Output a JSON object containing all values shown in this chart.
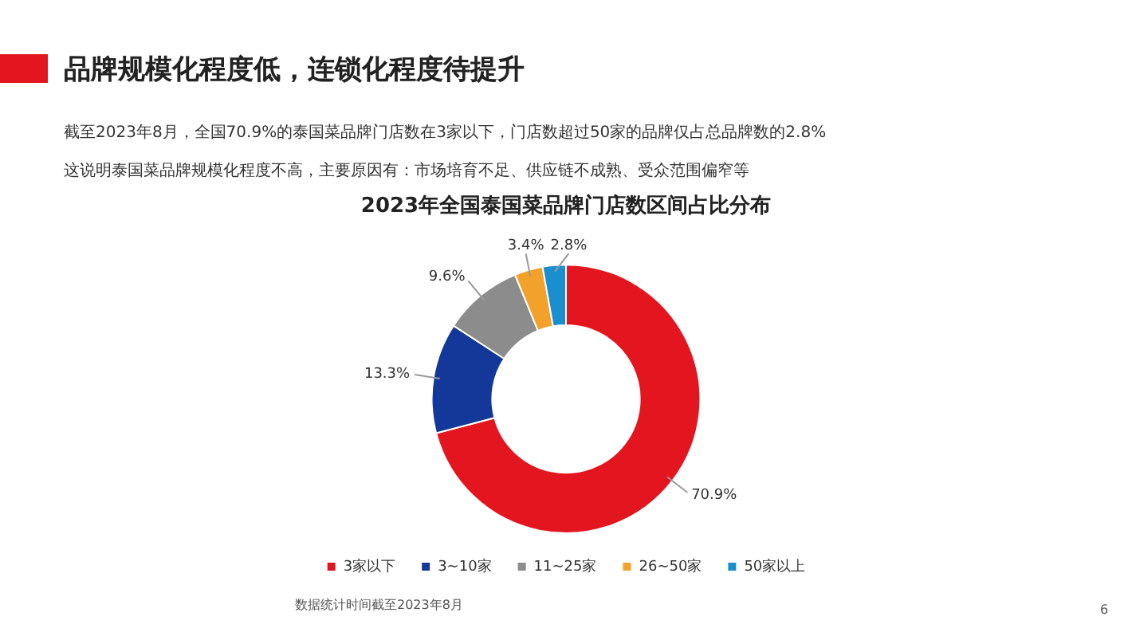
{
  "chart_data": {
    "type": "donut",
    "title": "2023年全国泰国菜品牌门店数区间占比分布",
    "subtitle": "品牌规模化程度低，连锁化程度待提升",
    "annotations": [
      "截至2023年8月，全国70.9%的泰国菜品牌门店数在3家以下，门店数超过50家的品牌仅占总品牌数的2.8%",
      "这说明泰国菜品牌规模化程度不高，主要原因有：市场培育不足、供应链不成熟、受众范围偏窄等",
      "数据统计时间截至2023年8月",
      "6"
    ],
    "categories": [
      "3家以下",
      "3~10家",
      "11~25家",
      "26~50家",
      "50家以上"
    ],
    "values": [
      70.9,
      13.3,
      9.6,
      3.4,
      2.8
    ],
    "value_labels": [
      "70.9%",
      "13.3%",
      "9.6%",
      "3.4%",
      "2.8%"
    ],
    "colors": [
      "#e3161f",
      "#14389a",
      "#8c8c8c",
      "#f2a12a",
      "#1a8fd0"
    ],
    "legend": "bottom"
  }
}
